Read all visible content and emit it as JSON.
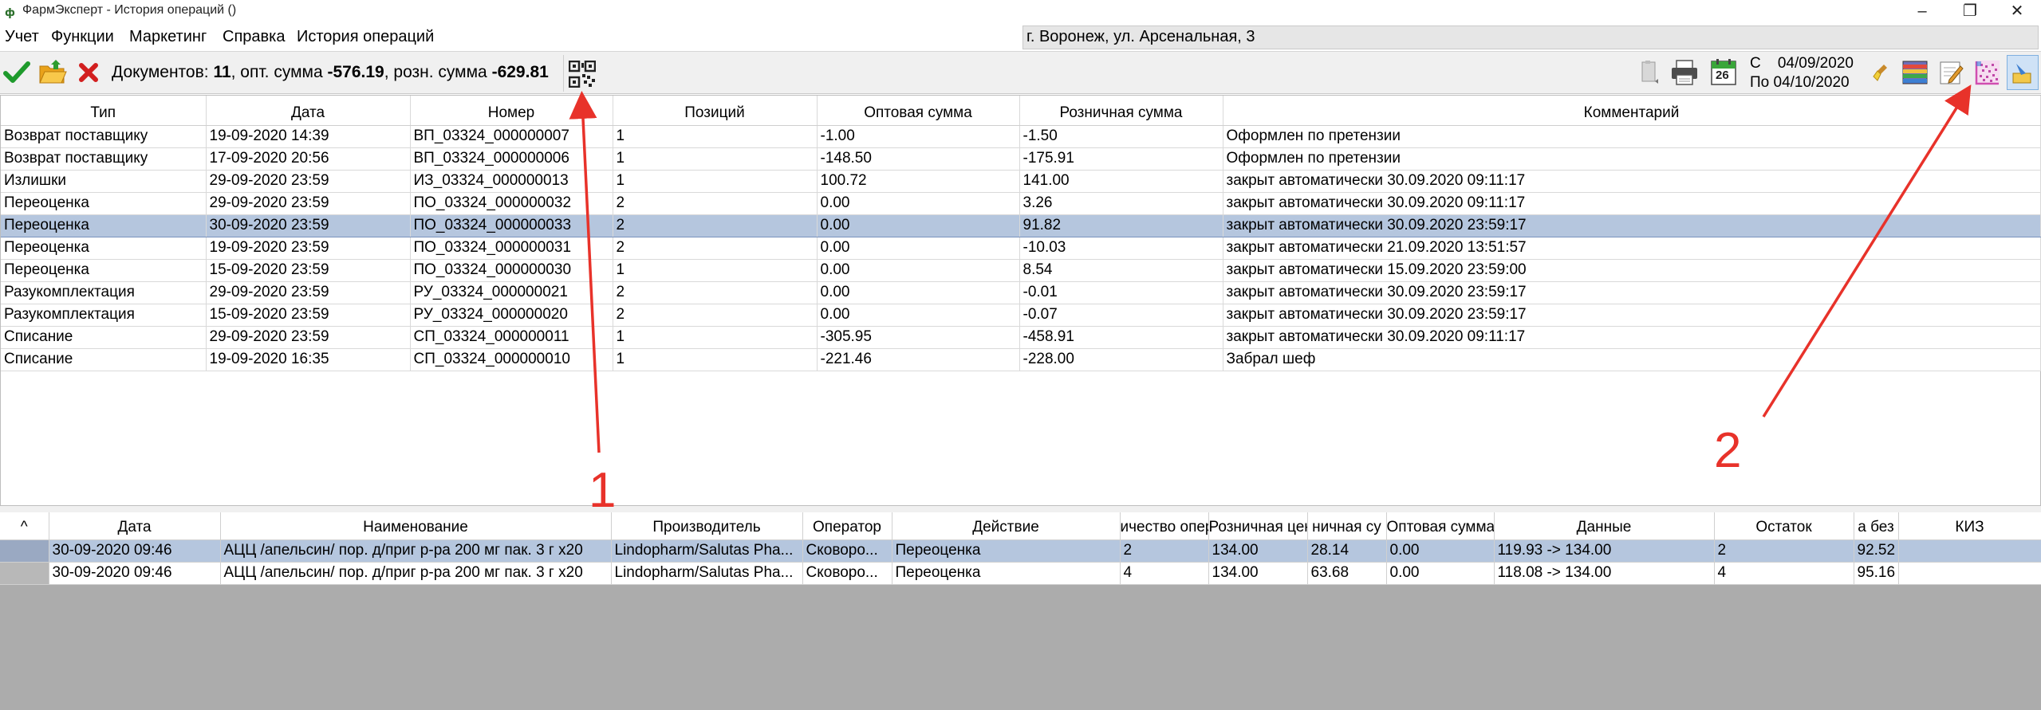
{
  "window": {
    "title": "ФармЭксперт - История операций ()",
    "controls": {
      "minimize": "–",
      "maximize": "❐",
      "close": "✕"
    }
  },
  "menu": {
    "items": [
      "Учет",
      "Функции",
      "Маркетинг",
      "Справка",
      "История операций"
    ],
    "location": "г. Воронеж, ул. Арсенальная, 3"
  },
  "toolbar": {
    "summary": {
      "docs_label": "Документов:",
      "docs_count": "11",
      "opt_label": ", опт. сумма",
      "opt_sum": "-576.19",
      "retail_label": ", розн. сумма",
      "retail_sum": "-629.81"
    },
    "calendar_day": "26",
    "date_from_label": "С",
    "date_from": "04/09/2020",
    "date_to_label": "По",
    "date_to": "04/10/2020",
    "icons": [
      "check-icon",
      "open-folder-icon",
      "delete-icon",
      "qr-code-icon",
      "report-icon",
      "print-icon",
      "calendar-icon",
      "broom-icon",
      "color-books-icon",
      "edit-icon",
      "datamatrix-icon",
      "pin-icon"
    ]
  },
  "documents": {
    "columns": [
      "Тип",
      "Дата",
      "Номер",
      "Позиций",
      "Оптовая сумма",
      "Розничная сумма",
      "Комментарий"
    ],
    "rows": [
      [
        "Возврат поставщику",
        "19-09-2020 14:39",
        "ВП_03324_000000007",
        "1",
        "-1.00",
        "-1.50",
        "Оформлен по претензии"
      ],
      [
        "Возврат поставщику",
        "17-09-2020 20:56",
        "ВП_03324_000000006",
        "1",
        "-148.50",
        "-175.91",
        "Оформлен по претензии"
      ],
      [
        "Излишки",
        "29-09-2020 23:59",
        "ИЗ_03324_000000013",
        "1",
        "100.72",
        "141.00",
        "закрыт автоматически 30.09.2020 09:11:17"
      ],
      [
        "Переоценка",
        "29-09-2020 23:59",
        "ПО_03324_000000032",
        "2",
        "0.00",
        "3.26",
        "закрыт автоматически 30.09.2020 09:11:17"
      ],
      [
        "Переоценка",
        "30-09-2020 23:59",
        "ПО_03324_000000033",
        "2",
        "0.00",
        "91.82",
        "закрыт автоматически 30.09.2020 23:59:17"
      ],
      [
        "Переоценка",
        "19-09-2020 23:59",
        "ПО_03324_000000031",
        "2",
        "0.00",
        "-10.03",
        "закрыт автоматически 21.09.2020 13:51:57"
      ],
      [
        "Переоценка",
        "15-09-2020 23:59",
        "ПО_03324_000000030",
        "1",
        "0.00",
        "8.54",
        "закрыт автоматически 15.09.2020 23:59:00"
      ],
      [
        "Разукомплектация",
        "29-09-2020 23:59",
        "РУ_03324_000000021",
        "2",
        "0.00",
        "-0.01",
        "закрыт автоматически 30.09.2020 23:59:17"
      ],
      [
        "Разукомплектация",
        "15-09-2020 23:59",
        "РУ_03324_000000020",
        "2",
        "0.00",
        "-0.07",
        "закрыт автоматически 30.09.2020 23:59:17"
      ],
      [
        "Списание",
        "29-09-2020 23:59",
        "СП_03324_000000011",
        "1",
        "-305.95",
        "-458.91",
        "закрыт автоматически 30.09.2020 09:11:17"
      ],
      [
        "Списание",
        "19-09-2020 16:35",
        "СП_03324_000000010",
        "1",
        "-221.46",
        "-228.00",
        "Забрал шеф"
      ]
    ]
  },
  "operations": {
    "corner": "^",
    "columns": [
      "Дата",
      "Наименование",
      "Производитель",
      "Оператор",
      "Действие",
      "ичество опер",
      "Розничная цена",
      "ничная су",
      "Оптовая сумма",
      "Данные",
      "Остаток",
      "а без",
      "КИЗ"
    ],
    "rows": [
      [
        "30-09-2020 09:46",
        "АЦЦ /апельсин/ пор. д/приг р-ра 200 мг пак. 3 г х20",
        "Lindopharm/Salutas Pha...",
        "Сковоро...",
        "Переоценка",
        "2",
        "134.00",
        "28.14",
        "0.00",
        "119.93 -> 134.00",
        "2",
        "92.52",
        ""
      ],
      [
        "30-09-2020 09:46",
        "АЦЦ /апельсин/ пор. д/приг р-ра 200 мг пак. 3 г х20",
        "Lindopharm/Salutas Pha...",
        "Сковоро...",
        "Переоценка",
        "4",
        "134.00",
        "63.68",
        "0.00",
        "118.08 -> 134.00",
        "4",
        "95.16",
        ""
      ]
    ]
  },
  "annotations": {
    "label_1": "1",
    "label_2": "2",
    "color": "#e8322a"
  }
}
